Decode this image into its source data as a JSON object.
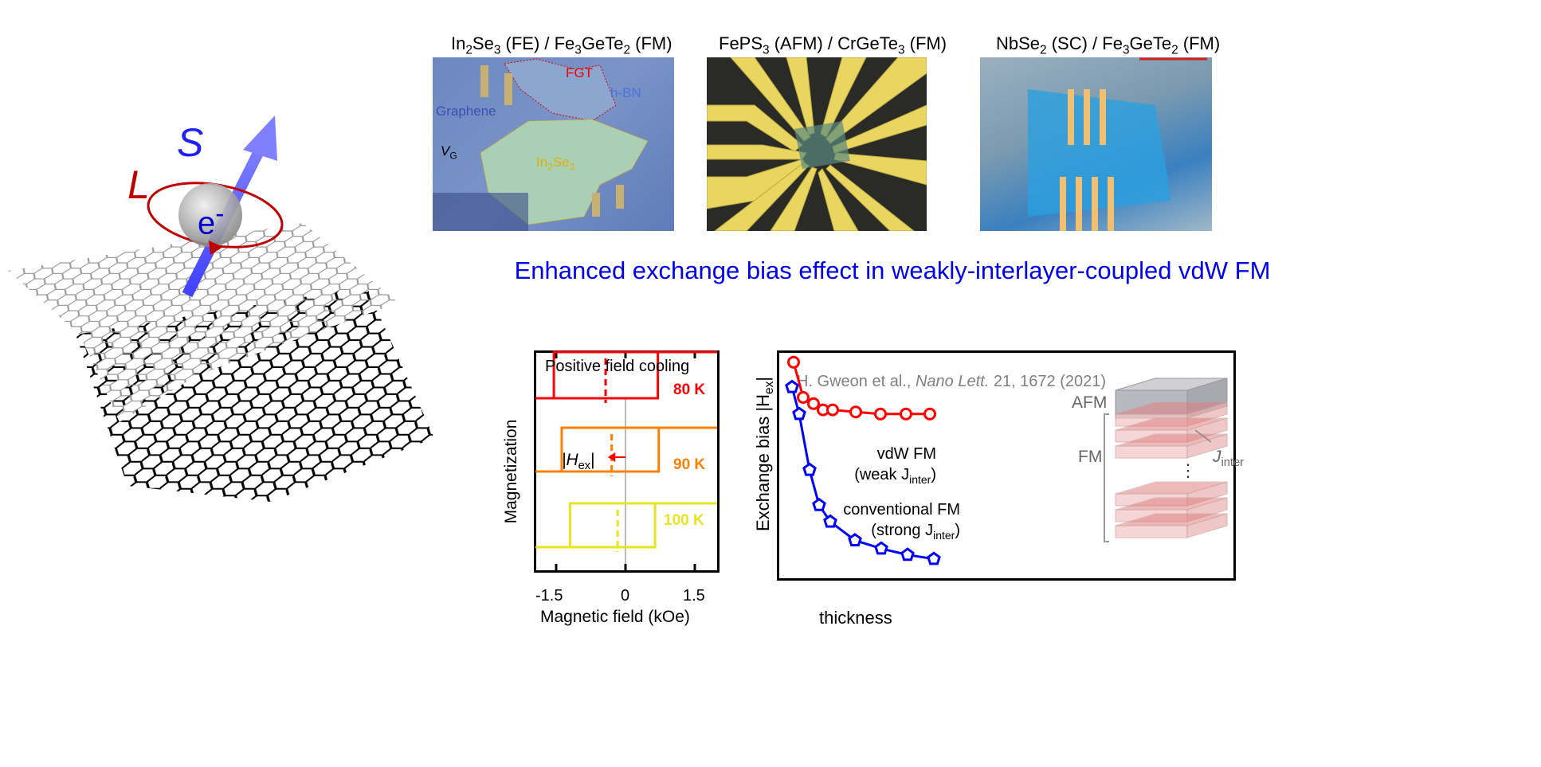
{
  "illustration": {
    "spin_label": "S",
    "orbit_label": "L",
    "electron_label": "e",
    "electron_sup": "-",
    "colors": {
      "spin": "#6b6bff",
      "orbit": "#c00000",
      "top_sheet": "#888888",
      "bottom_sheet": "#000000"
    }
  },
  "micrographs": [
    {
      "caption_parts": [
        "In",
        "2",
        "Se",
        "3",
        " (FE) / Fe",
        "3",
        "GeTe",
        "2",
        " (FM)"
      ],
      "labels": {
        "fgt": "FGT",
        "hbn": "h-BN",
        "graphene": "Graphene",
        "vg": "V",
        "vg_sub": "G",
        "inse": "In",
        "inse_sub1": "2",
        "inse_se": "Se",
        "inse_sub2": "3"
      }
    },
    {
      "caption_parts": [
        "FePS",
        "3",
        " (AFM) / CrGeTe",
        "3",
        " (FM)"
      ]
    },
    {
      "caption_parts": [
        "NbSe",
        "2",
        " (SC) / Fe",
        "3",
        "GeTe",
        "2",
        " (FM)"
      ]
    }
  ],
  "headline": "Enhanced exchange bias effect in weakly-interlayer-coupled vdW FM",
  "chart_data": [
    {
      "type": "line",
      "title": "Positive field cooling",
      "xlabel": "Magnetic field (kOe)",
      "ylabel": "Magnetization",
      "xlim": [
        -2.0,
        2.0
      ],
      "xticks": [
        "-1.5",
        "0",
        "1.5"
      ],
      "xtick_values": [
        -1.5,
        0,
        1.5
      ],
      "annotation": {
        "text_pre": "|H",
        "text_sub": "ex",
        "text_post": "|"
      },
      "series": [
        {
          "name": "80 K",
          "color": "#ff0000",
          "coercive_left": -1.55,
          "coercive_right": 0.7,
          "exchange_bias_center": -0.43
        },
        {
          "name": "90 K",
          "color": "#ff7f00",
          "coercive_left": -1.38,
          "coercive_right": 0.72,
          "exchange_bias_center": -0.3
        },
        {
          "name": "100 K",
          "color": "#e6e620",
          "coercive_left": -1.2,
          "coercive_right": 0.64,
          "exchange_bias_center": -0.17
        }
      ]
    },
    {
      "type": "line",
      "citation": {
        "pre": "H. Gweon et al., ",
        "journal": "Nano Lett.",
        "post": " 21, 1672 (2021)"
      },
      "xlabel": "thickness",
      "ylabel": {
        "pre": "Exchange bias  |H",
        "sub": "ex",
        "post": "|"
      },
      "axes_units": "arbitrary",
      "xlim": [
        0,
        10
      ],
      "ylim": [
        0,
        11
      ],
      "series": [
        {
          "name_line1": "vdW FM",
          "name_line2_pre": "(weak J",
          "name_line2_sub": "inter",
          "name_line2_post": ")",
          "color": "#ff0000",
          "marker": "circle",
          "x": [
            0.8,
            1.4,
            2.05,
            2.65,
            3.25,
            4.7,
            6.25,
            7.85,
            9.35
          ],
          "y": [
            10.2,
            8.5,
            8.2,
            7.9,
            7.9,
            7.8,
            7.7,
            7.7,
            7.7
          ]
        },
        {
          "name_line1": "conventional FM",
          "name_line2_pre": "(strong J",
          "name_line2_sub": "inter",
          "name_line2_post": ")",
          "color": "#0000ff",
          "marker": "pentagon",
          "x": [
            0.7,
            1.15,
            1.8,
            2.4,
            3.1,
            4.65,
            6.3,
            7.95,
            9.6
          ],
          "y": [
            9.0,
            7.7,
            5.0,
            3.3,
            2.5,
            1.6,
            1.2,
            0.9,
            0.7
          ]
        }
      ],
      "inset": {
        "afm_label": "AFM",
        "fm_label": "FM",
        "coupling_pre": "J",
        "coupling_sub": "inter",
        "dots": "⋮"
      }
    }
  ]
}
